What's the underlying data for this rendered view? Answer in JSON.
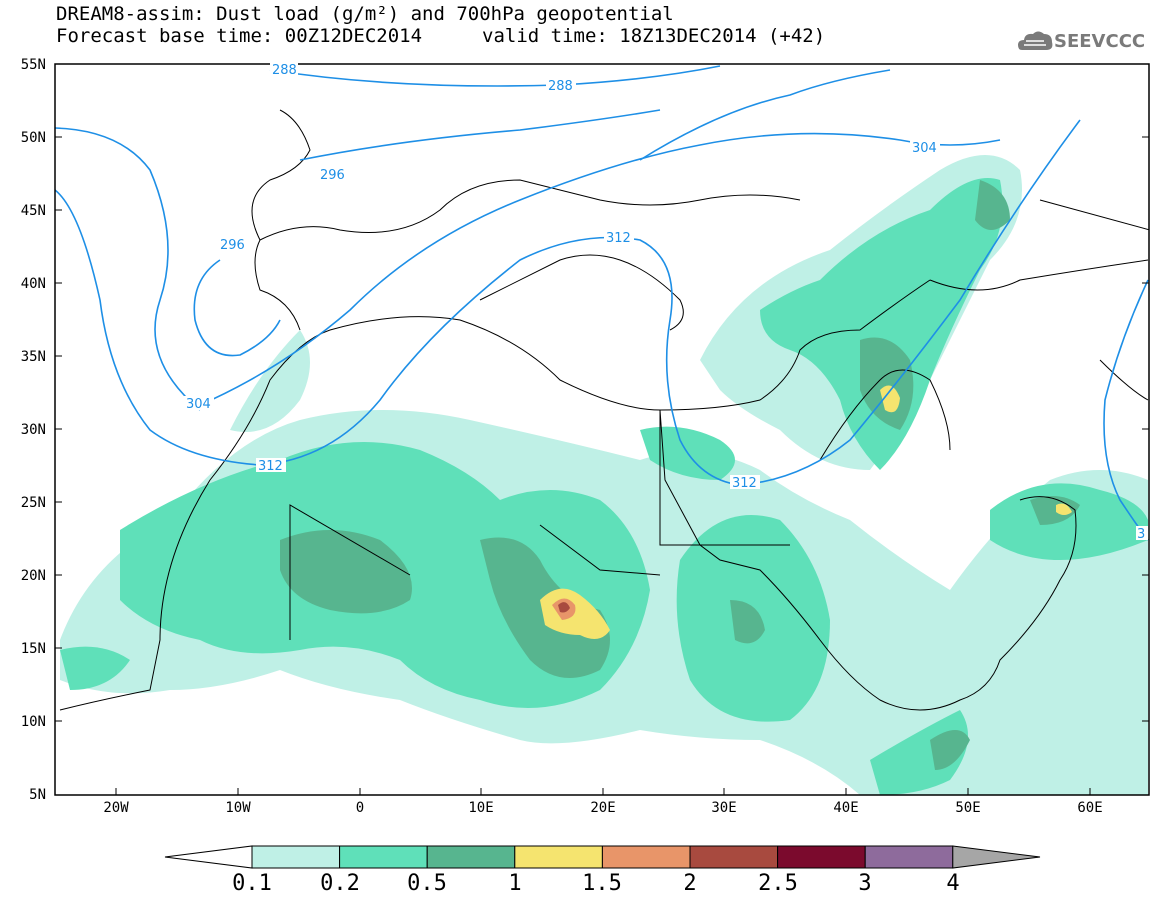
{
  "header": {
    "title": "DREAM8-assim: Dust load (g/m²) and 700hPa geopotential",
    "base_time": "Forecast base time: 00Z12DEC2014",
    "valid_time": "valid time: 18Z13DEC2014 (+42)"
  },
  "logo": {
    "text": "SEEVCCC",
    "icon": "cloud-icon"
  },
  "axes": {
    "lat_labels": [
      "55N",
      "50N",
      "45N",
      "40N",
      "35N",
      "30N",
      "25N",
      "20N",
      "15N",
      "10N",
      "5N"
    ],
    "lon_labels": [
      "20W",
      "10W",
      "0",
      "10E",
      "20E",
      "30E",
      "40E",
      "50E",
      "60E"
    ]
  },
  "contour_labels": [
    "288",
    "296",
    "304",
    "312",
    "304",
    "296",
    "288",
    "312",
    "312",
    "312",
    "3"
  ],
  "colorbar": {
    "labels": [
      "0.1",
      "0.2",
      "0.5",
      "1",
      "1.5",
      "2",
      "2.5",
      "3",
      "4"
    ],
    "colors": [
      "#ffffff",
      "#bff0e6",
      "#5fe0b9",
      "#57b58f",
      "#f5e46f",
      "#e89569",
      "#a84a3f",
      "#7b0a2d",
      "#8e6b9c",
      "#a6a6a6"
    ]
  },
  "colors": {
    "contour": "#1e8fe6",
    "border": "#000000"
  }
}
